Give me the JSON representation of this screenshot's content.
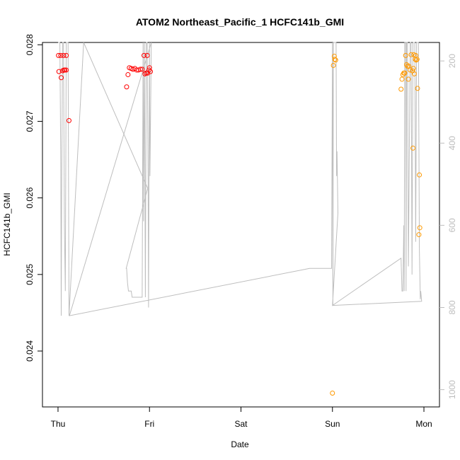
{
  "chart_data": {
    "type": "scatter",
    "title": "ATOM2 Northeast_Pacific_1 HCFC141b_GMI",
    "xlabel": "Date",
    "ylabel": "HCFC141b_GMI",
    "x_tick_labels": [
      "Thu",
      "Fri",
      "Sat",
      "Sun",
      "Mon"
    ],
    "x_ticks_days": [
      0,
      1,
      2,
      3,
      4
    ],
    "xlim_days": [
      -0.17,
      4.17
    ],
    "ylim": [
      0.02327,
      0.02803
    ],
    "y_ticks": [
      0.024,
      0.025,
      0.026,
      0.027,
      0.028
    ],
    "y_tick_labels": [
      "0.024",
      "0.025",
      "0.026",
      "0.027",
      "0.028"
    ],
    "right_axis": {
      "label": "",
      "reversed": true,
      "ylim": [
        1042,
        155
      ],
      "ticks": [
        200,
        400,
        600,
        800,
        1000
      ],
      "tick_labels": [
        "200",
        "400",
        "600",
        "800",
        "1000"
      ],
      "color": "#bdbdbd"
    },
    "colors": {
      "series_red": "#ff0000",
      "series_orange": "#ff9900",
      "pressure_line": "#bebebe",
      "axes": "#000000"
    },
    "grid": false,
    "series": [
      {
        "color": "red",
        "points": [
          [
            0.005,
            0.02786
          ],
          [
            0.03,
            0.02786
          ],
          [
            0.06,
            0.02786
          ],
          [
            0.09,
            0.02786
          ],
          [
            0.01,
            0.02765
          ],
          [
            0.035,
            0.02757
          ],
          [
            0.05,
            0.02766
          ],
          [
            0.065,
            0.02767
          ],
          [
            0.075,
            0.02767
          ],
          [
            0.09,
            0.02767
          ],
          [
            0.12,
            0.02701
          ],
          [
            0.75,
            0.02745
          ],
          [
            0.765,
            0.02761
          ],
          [
            0.78,
            0.0277
          ],
          [
            0.8,
            0.02769
          ],
          [
            0.82,
            0.02768
          ],
          [
            0.84,
            0.02769
          ],
          [
            0.86,
            0.02767
          ],
          [
            0.88,
            0.02767
          ],
          [
            0.9,
            0.02768
          ],
          [
            0.92,
            0.02768
          ],
          [
            0.94,
            0.02786
          ],
          [
            0.975,
            0.02786
          ],
          [
            0.95,
            0.02762
          ],
          [
            0.965,
            0.02763
          ],
          [
            0.98,
            0.02763
          ],
          [
            0.995,
            0.02767
          ],
          [
            1.0,
            0.0277
          ],
          [
            1.01,
            0.02765
          ]
        ]
      },
      {
        "color": "orange",
        "points": [
          [
            3.0,
            0.02345
          ],
          [
            3.02,
            0.02785
          ],
          [
            3.025,
            0.02781
          ],
          [
            3.035,
            0.0278
          ],
          [
            3.01,
            0.02773
          ],
          [
            3.75,
            0.02742
          ],
          [
            3.76,
            0.02755
          ],
          [
            3.77,
            0.02761
          ],
          [
            3.78,
            0.02763
          ],
          [
            3.79,
            0.02763
          ],
          [
            3.81,
            0.02774
          ],
          [
            3.82,
            0.02772
          ],
          [
            3.835,
            0.02772
          ],
          [
            3.85,
            0.02767
          ],
          [
            3.83,
            0.02755
          ],
          [
            3.86,
            0.02787
          ],
          [
            3.8,
            0.02786
          ],
          [
            3.89,
            0.02787
          ],
          [
            3.91,
            0.02786
          ],
          [
            3.905,
            0.02781
          ],
          [
            3.915,
            0.0278
          ],
          [
            3.925,
            0.02781
          ],
          [
            3.875,
            0.02766
          ],
          [
            3.885,
            0.02769
          ],
          [
            3.895,
            0.02762
          ],
          [
            3.93,
            0.02743
          ],
          [
            3.88,
            0.02665
          ],
          [
            3.95,
            0.0263
          ],
          [
            3.955,
            0.02561
          ],
          [
            3.945,
            0.02552
          ]
        ]
      }
    ],
    "pressure_line": [
      [
        0.0,
        155
      ],
      [
        0.02,
        155
      ],
      [
        0.03,
        460
      ],
      [
        0.035,
        820
      ],
      [
        0.04,
        540
      ],
      [
        0.05,
        155
      ],
      [
        0.06,
        155
      ],
      [
        0.07,
        600
      ],
      [
        0.08,
        760
      ],
      [
        0.09,
        155
      ],
      [
        0.11,
        155
      ],
      [
        0.12,
        820
      ],
      [
        0.28,
        155
      ],
      [
        0.98,
        510
      ],
      [
        0.745,
        705
      ],
      [
        0.75,
        705
      ],
      [
        0.76,
        740
      ],
      [
        0.77,
        760
      ],
      [
        0.8,
        760
      ],
      [
        0.81,
        775
      ],
      [
        0.92,
        775
      ],
      [
        0.93,
        155
      ],
      [
        0.935,
        590
      ],
      [
        0.945,
        155
      ],
      [
        0.955,
        775
      ],
      [
        0.965,
        155
      ],
      [
        0.975,
        155
      ],
      [
        0.985,
        500
      ],
      [
        0.99,
        800
      ],
      [
        1.0,
        155
      ],
      [
        1.005,
        480
      ],
      [
        1.02,
        155
      ],
      [
        0.125,
        820
      ],
      [
        2.75,
        705
      ],
      [
        2.99,
        705
      ],
      [
        3.0,
        155
      ],
      [
        3.005,
        795
      ],
      [
        3.01,
        155
      ],
      [
        3.04,
        155
      ],
      [
        3.045,
        480
      ],
      [
        3.05,
        420
      ],
      [
        3.06,
        570
      ],
      [
        3.0,
        795
      ],
      [
        3.75,
        680
      ],
      [
        3.76,
        760
      ],
      [
        3.77,
        760
      ],
      [
        3.78,
        600
      ],
      [
        3.785,
        760
      ],
      [
        3.79,
        155
      ],
      [
        3.8,
        155
      ],
      [
        3.805,
        760
      ],
      [
        3.81,
        155
      ],
      [
        3.82,
        155
      ],
      [
        3.83,
        700
      ],
      [
        3.85,
        155
      ],
      [
        3.86,
        155
      ],
      [
        3.87,
        720
      ],
      [
        3.88,
        155
      ],
      [
        3.9,
        155
      ],
      [
        3.91,
        640
      ],
      [
        3.92,
        155
      ],
      [
        3.94,
        155
      ],
      [
        3.95,
        660
      ],
      [
        3.96,
        780
      ],
      [
        3.965,
        760
      ],
      [
        3.975,
        785
      ],
      [
        3.0,
        795
      ]
    ]
  }
}
